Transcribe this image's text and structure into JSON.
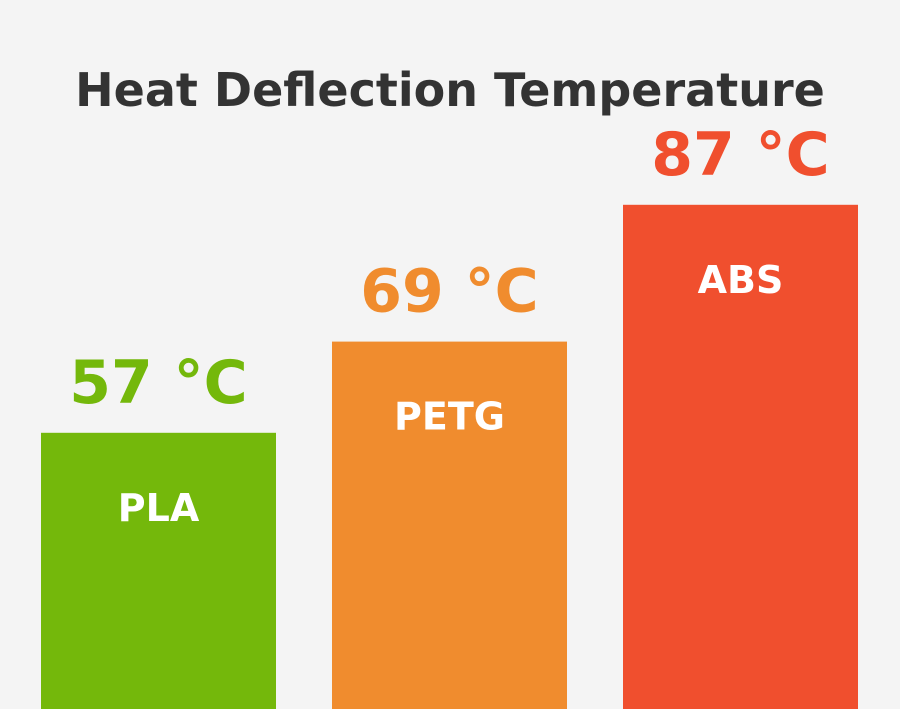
{
  "chart_data": {
    "type": "bar",
    "title": "Heat Deflection Temperature",
    "categories": [
      "PLA",
      "PETG",
      "ABS"
    ],
    "values": [
      57,
      69,
      87
    ],
    "unit": "°C",
    "value_labels": [
      "57 °C",
      "69 °C",
      "87 °C"
    ],
    "colors": [
      "#74b80b",
      "#f08c2e",
      "#f04f2e"
    ],
    "grid": false,
    "legend": "none"
  }
}
